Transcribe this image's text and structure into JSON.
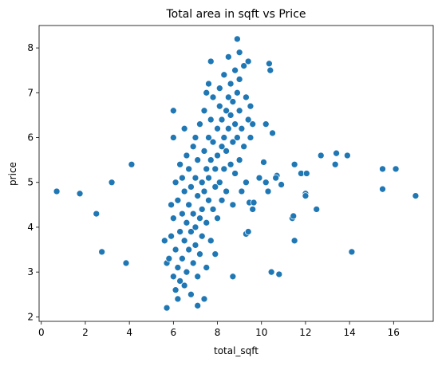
{
  "chart_data": {
    "type": "scatter",
    "title": "Total area in sqft vs Price",
    "xlabel": "total_sqft",
    "ylabel": "price",
    "xlim": [
      -0.1,
      17.8
    ],
    "ylim": [
      1.9,
      8.5
    ],
    "xticks": [
      0,
      2,
      4,
      6,
      8,
      10,
      12,
      14,
      16
    ],
    "yticks": [
      2,
      3,
      4,
      5,
      6,
      7,
      8
    ],
    "grid": false,
    "color": "#1f77b4",
    "x": [
      0.7,
      1.75,
      2.5,
      2.75,
      3.2,
      3.85,
      4.1,
      10.2,
      10.5,
      10.35,
      10.4,
      10.1,
      10.7,
      10.65,
      10.9,
      11.5,
      11.8,
      12.05,
      12.0,
      12.0,
      11.4,
      11.45,
      11.5,
      12.5,
      12.7,
      13.4,
      13.35,
      13.9,
      14.1,
      15.5,
      15.5,
      16.1,
      17.0,
      10.45,
      10.8,
      9.3,
      9.4,
      9.6,
      9.45,
      9.65,
      10.2,
      10.3,
      9.9,
      9.1,
      9.3,
      6.0,
      6.0,
      6.5,
      7.7,
      8.9,
      9.0,
      8.7,
      7.1,
      7.4,
      5.7,
      7.5,
      7.6,
      9.5,
      9.6,
      5.6,
      5.7,
      5.8,
      5.9,
      5.9,
      6.0,
      6.0,
      6.1,
      6.1,
      6.1,
      6.2,
      6.2,
      6.2,
      6.3,
      6.3,
      6.3,
      6.4,
      6.4,
      6.4,
      6.5,
      6.5,
      6.5,
      6.6,
      6.6,
      6.6,
      6.7,
      6.7,
      6.7,
      6.8,
      6.8,
      6.8,
      6.9,
      6.9,
      6.9,
      7.0,
      7.0,
      7.0,
      7.0,
      7.1,
      7.1,
      7.1,
      7.2,
      7.2,
      7.2,
      7.3,
      7.3,
      7.3,
      7.4,
      7.4,
      7.4,
      7.5,
      7.5,
      7.5,
      7.6,
      7.6,
      7.6,
      7.7,
      7.7,
      7.7,
      7.8,
      7.8,
      7.8,
      7.9,
      7.9,
      7.9,
      8.0,
      8.0,
      8.0,
      8.1,
      8.1,
      8.1,
      8.2,
      8.2,
      8.2,
      8.3,
      8.3,
      8.3,
      8.4,
      8.4,
      8.4,
      8.5,
      8.5,
      8.5,
      8.6,
      8.6,
      8.6,
      8.7,
      8.7,
      8.7,
      8.8,
      8.8,
      8.8,
      8.9,
      8.9,
      9.0,
      9.0,
      9.0,
      9.1,
      9.2,
      9.2,
      9.3,
      9.4,
      9.4,
      9.5
    ],
    "values": [
      4.8,
      4.75,
      4.3,
      3.45,
      5.0,
      3.2,
      5.4,
      6.3,
      6.1,
      7.65,
      7.5,
      5.45,
      5.15,
      5.1,
      4.95,
      5.4,
      5.2,
      5.2,
      4.75,
      4.7,
      4.2,
      4.25,
      3.7,
      4.4,
      5.6,
      5.65,
      5.4,
      5.6,
      3.45,
      5.3,
      4.85,
      5.3,
      4.7,
      3.0,
      2.95,
      3.85,
      3.9,
      4.4,
      4.55,
      4.55,
      5.0,
      4.8,
      5.1,
      4.8,
      5.0,
      6.6,
      6.0,
      6.2,
      7.7,
      8.2,
      7.9,
      2.9,
      2.25,
      2.4,
      2.2,
      7.0,
      7.2,
      6.7,
      6.3,
      3.7,
      3.2,
      3.3,
      4.5,
      3.8,
      2.9,
      4.2,
      2.6,
      3.5,
      5.0,
      2.4,
      3.1,
      4.6,
      3.9,
      5.4,
      2.8,
      4.3,
      3.3,
      5.1,
      2.7,
      3.7,
      4.8,
      5.6,
      4.1,
      3.0,
      4.5,
      3.5,
      5.3,
      2.5,
      3.9,
      4.9,
      5.8,
      4.3,
      3.2,
      4.0,
      5.1,
      3.6,
      6.0,
      4.7,
      2.9,
      5.5,
      4.2,
      3.4,
      6.3,
      5.0,
      4.4,
      3.8,
      5.7,
      4.8,
      6.6,
      4.1,
      5.3,
      3.1,
      6.0,
      4.6,
      5.1,
      3.7,
      5.5,
      6.4,
      4.4,
      5.9,
      6.9,
      4.9,
      5.3,
      3.4,
      6.2,
      5.6,
      4.2,
      6.7,
      5.0,
      7.1,
      5.8,
      6.4,
      4.6,
      6.0,
      7.4,
      5.3,
      6.6,
      5.7,
      4.8,
      6.9,
      6.2,
      7.8,
      5.4,
      6.5,
      7.2,
      5.9,
      6.8,
      4.5,
      7.5,
      6.3,
      5.2,
      7.0,
      6.0,
      6.6,
      7.3,
      5.5,
      6.2,
      7.6,
      5.8,
      6.9,
      7.7,
      6.4,
      6.0
    ]
  }
}
